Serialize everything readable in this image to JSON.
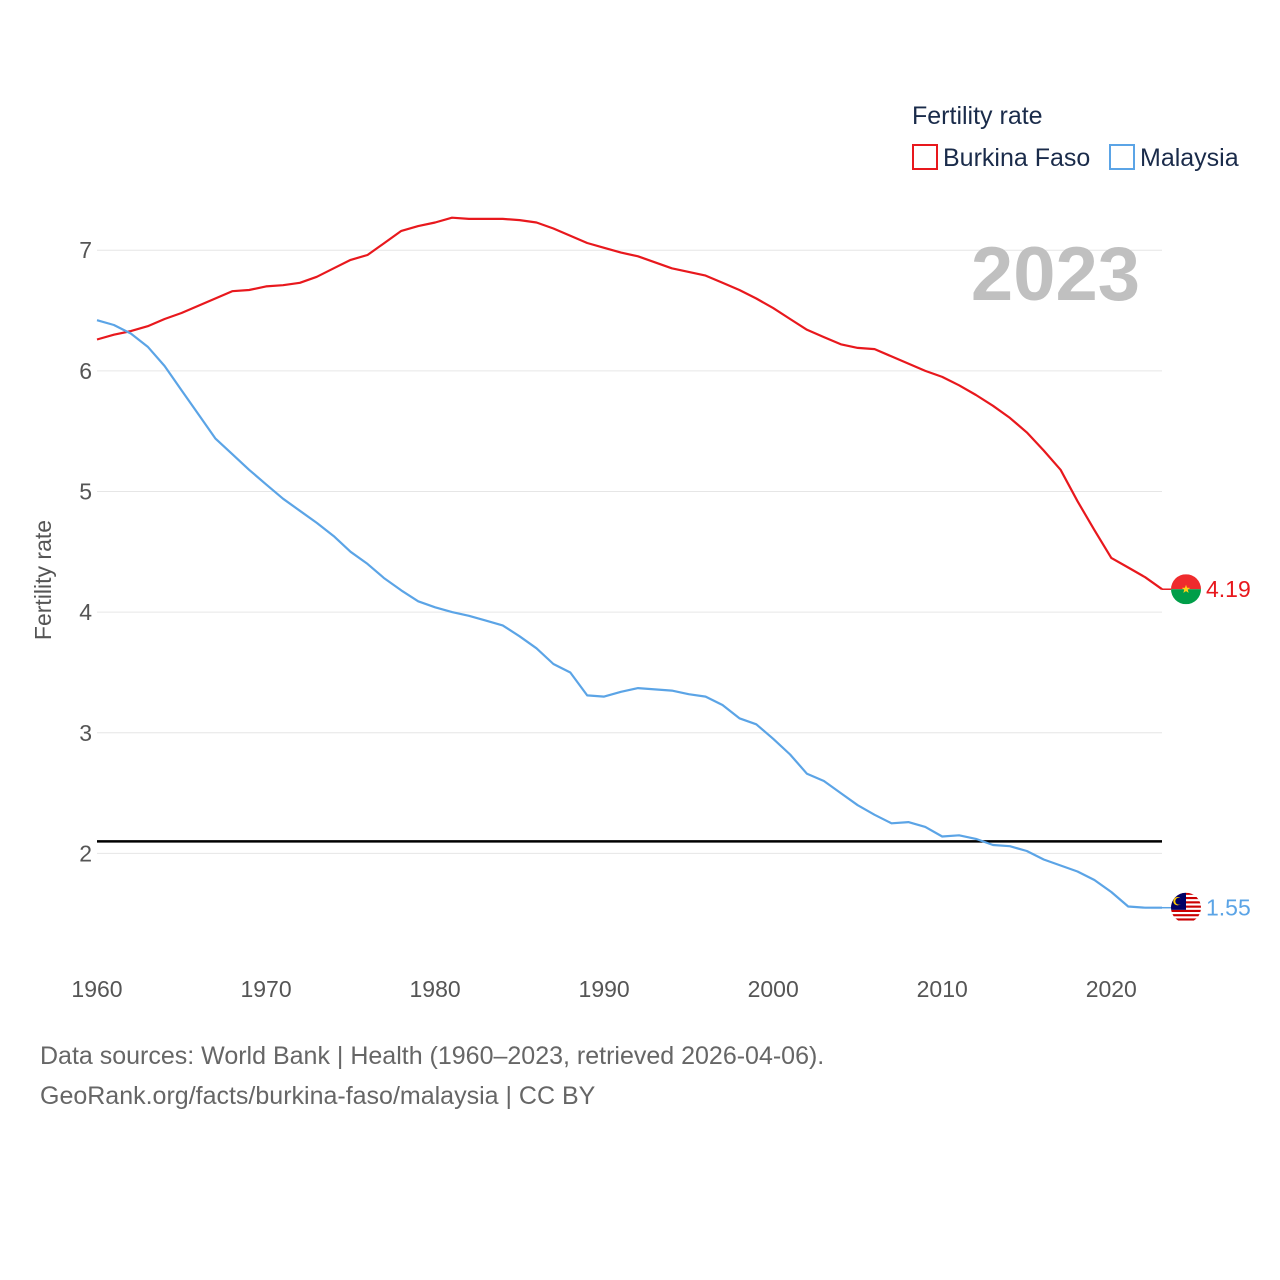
{
  "chart_data": {
    "type": "line",
    "title": "Fertility rate",
    "ylabel": "Fertility rate",
    "xlabel": "",
    "current_year": "2023",
    "xlim": [
      1960,
      2023
    ],
    "ylim": [
      1.1,
      7.35
    ],
    "yticks": [
      2,
      3,
      4,
      5,
      6,
      7
    ],
    "xticks": [
      1960,
      1970,
      1980,
      1990,
      2000,
      2010,
      2020
    ],
    "reference_line": {
      "value": 2.1,
      "color": "#000000"
    },
    "x": [
      1960,
      1961,
      1962,
      1963,
      1964,
      1965,
      1966,
      1967,
      1968,
      1969,
      1970,
      1971,
      1972,
      1973,
      1974,
      1975,
      1976,
      1977,
      1978,
      1979,
      1980,
      1981,
      1982,
      1983,
      1984,
      1985,
      1986,
      1987,
      1988,
      1989,
      1990,
      1991,
      1992,
      1993,
      1994,
      1995,
      1996,
      1997,
      1998,
      1999,
      2000,
      2001,
      2002,
      2003,
      2004,
      2005,
      2006,
      2007,
      2008,
      2009,
      2010,
      2011,
      2012,
      2013,
      2014,
      2015,
      2016,
      2017,
      2018,
      2019,
      2020,
      2021,
      2022,
      2023
    ],
    "series": [
      {
        "name": "Burkina Faso",
        "color": "#e8181d",
        "end_label": "4.19",
        "flag": "burkina-faso-flag",
        "values": [
          6.26,
          6.3,
          6.33,
          6.37,
          6.43,
          6.48,
          6.54,
          6.6,
          6.66,
          6.67,
          6.7,
          6.71,
          6.73,
          6.78,
          6.85,
          6.92,
          6.96,
          7.06,
          7.16,
          7.2,
          7.23,
          7.27,
          7.26,
          7.26,
          7.26,
          7.25,
          7.23,
          7.18,
          7.12,
          7.06,
          7.02,
          6.98,
          6.95,
          6.9,
          6.85,
          6.82,
          6.79,
          6.73,
          6.67,
          6.6,
          6.52,
          6.43,
          6.34,
          6.28,
          6.22,
          6.19,
          6.18,
          6.12,
          6.06,
          6.0,
          5.95,
          5.88,
          5.8,
          5.71,
          5.61,
          5.49,
          5.34,
          5.18,
          4.92,
          4.68,
          4.45,
          4.37,
          4.29,
          4.19
        ]
      },
      {
        "name": "Malaysia",
        "color": "#5ba4e6",
        "end_label": "1.55",
        "flag": "malaysia-flag",
        "values": [
          6.42,
          6.38,
          6.31,
          6.2,
          6.04,
          5.84,
          5.64,
          5.44,
          5.31,
          5.18,
          5.06,
          4.94,
          4.84,
          4.74,
          4.63,
          4.5,
          4.4,
          4.28,
          4.18,
          4.09,
          4.04,
          4.0,
          3.97,
          3.93,
          3.89,
          3.8,
          3.7,
          3.57,
          3.5,
          3.31,
          3.3,
          3.34,
          3.37,
          3.36,
          3.35,
          3.32,
          3.3,
          3.23,
          3.12,
          3.07,
          2.95,
          2.82,
          2.66,
          2.6,
          2.5,
          2.4,
          2.32,
          2.25,
          2.26,
          2.22,
          2.14,
          2.15,
          2.12,
          2.07,
          2.06,
          2.02,
          1.95,
          1.9,
          1.85,
          1.78,
          1.68,
          1.56,
          1.55,
          1.55
        ]
      }
    ]
  },
  "footer": {
    "line1": "Data sources: World Bank | Health (1960–2023, retrieved 2026-04-06).",
    "line2": "GeoRank.org/facts/burkina-faso/malaysia | CC BY"
  }
}
